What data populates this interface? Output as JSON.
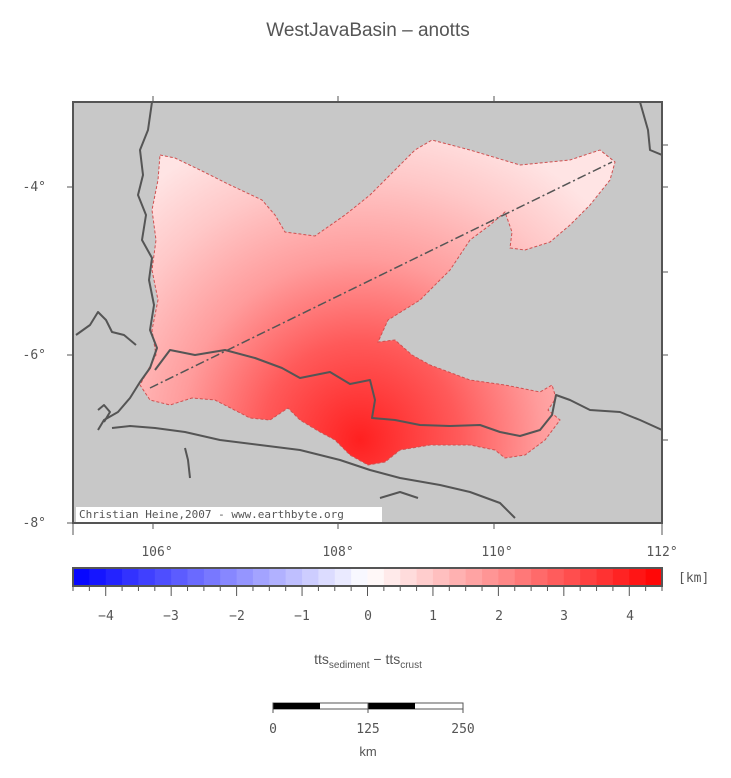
{
  "title": "WestJavaBasin – anotts",
  "credit": "Christian Heine,2007 - www.earthbyte.org",
  "map": {
    "lon_ticks": [
      "106°",
      "108°",
      "110°",
      "112°"
    ],
    "lat_ticks": [
      "-4°",
      "-6°",
      "-8°"
    ],
    "lon_range": [
      105,
      112
    ],
    "lat_range": [
      -8,
      -3
    ]
  },
  "colorbar": {
    "unit": "[km]",
    "ticks": [
      "−4",
      "−3",
      "−2",
      "−1",
      "0",
      "1",
      "2",
      "3",
      "4"
    ],
    "range": [
      -4.5,
      4.5
    ]
  },
  "label": {
    "main1": "tts",
    "sub1": "sediment",
    "dash": " − ",
    "main2": "tts",
    "sub2": "crust"
  },
  "scalebar": {
    "ticks": [
      "0",
      "125",
      "250"
    ],
    "unit": "km"
  },
  "colors": {
    "land": "#c8c8c8",
    "coast": "#555555",
    "positive": "#ff0000",
    "negative": "#0000ff"
  }
}
